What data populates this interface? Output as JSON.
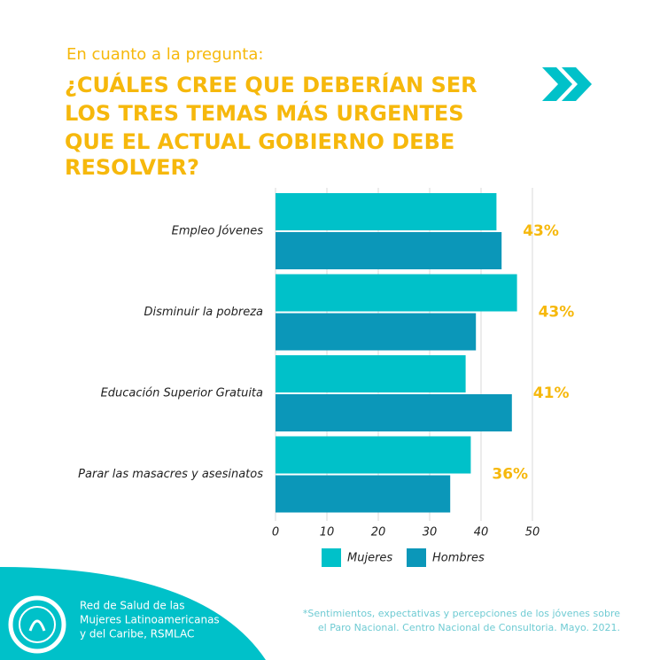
{
  "chart_data": {
    "type": "barh",
    "subtitle": "En cuanto a la pregunta:",
    "title": [
      "¿CUÁLES CREE QUE DEBERÍAN SER",
      "LOS TRES TEMAS MÁS URGENTES",
      "QUE EL ACTUAL GOBIERNO DEBE",
      "RESOLVER?"
    ],
    "categories": [
      "Empleo Jóvenes",
      "Disminuir la pobreza",
      "Educación Superior Gratuita",
      "Parar las masacres y asesinatos"
    ],
    "series": [
      {
        "name": "Mujeres",
        "color": "#00c1c9",
        "values": [
          43,
          47,
          37,
          38
        ]
      },
      {
        "name": "Hombres",
        "color": "#0b97b9",
        "values": [
          44,
          39,
          46,
          34
        ]
      }
    ],
    "summary": {
      "values": [
        43,
        43,
        41,
        36
      ],
      "value_labels": [
        "43%",
        "43%",
        "41%",
        "36%"
      ],
      "color": "#f6b80c"
    },
    "xlim": [
      0,
      50
    ],
    "xticks": [
      0,
      10,
      20,
      30,
      40,
      50
    ],
    "grid": true,
    "organization": [
      "Red de Salud de las",
      "Mujeres Latinoamericanas",
      "y del Caribe, RSMLAC"
    ],
    "footnote": [
      "*Sentimientos, expectativas y percepciones de los jóvenes sobre",
      "el Paro Nacional. Centro Nacional de Consultoria. Mayo. 2021."
    ]
  }
}
